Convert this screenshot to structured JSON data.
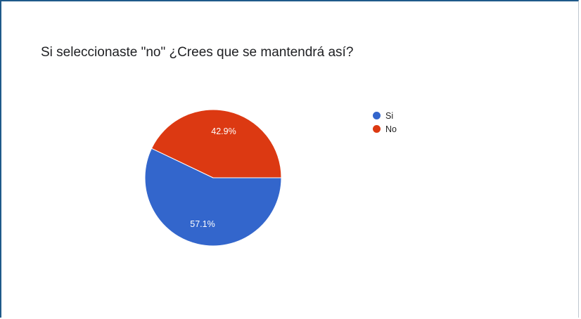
{
  "question": "Si seleccionaste \"no\" ¿Crees que se mantendrá así?",
  "chart_data": {
    "type": "pie",
    "title": "Si seleccionaste \"no\" ¿Crees que se mantendrá así?",
    "slices": [
      {
        "label": "Si",
        "value": 57.1,
        "display": "57.1%",
        "color": "#3366cc"
      },
      {
        "label": "No",
        "value": 42.9,
        "display": "42.9%",
        "color": "#dc3912"
      }
    ],
    "legend_position": "right"
  }
}
